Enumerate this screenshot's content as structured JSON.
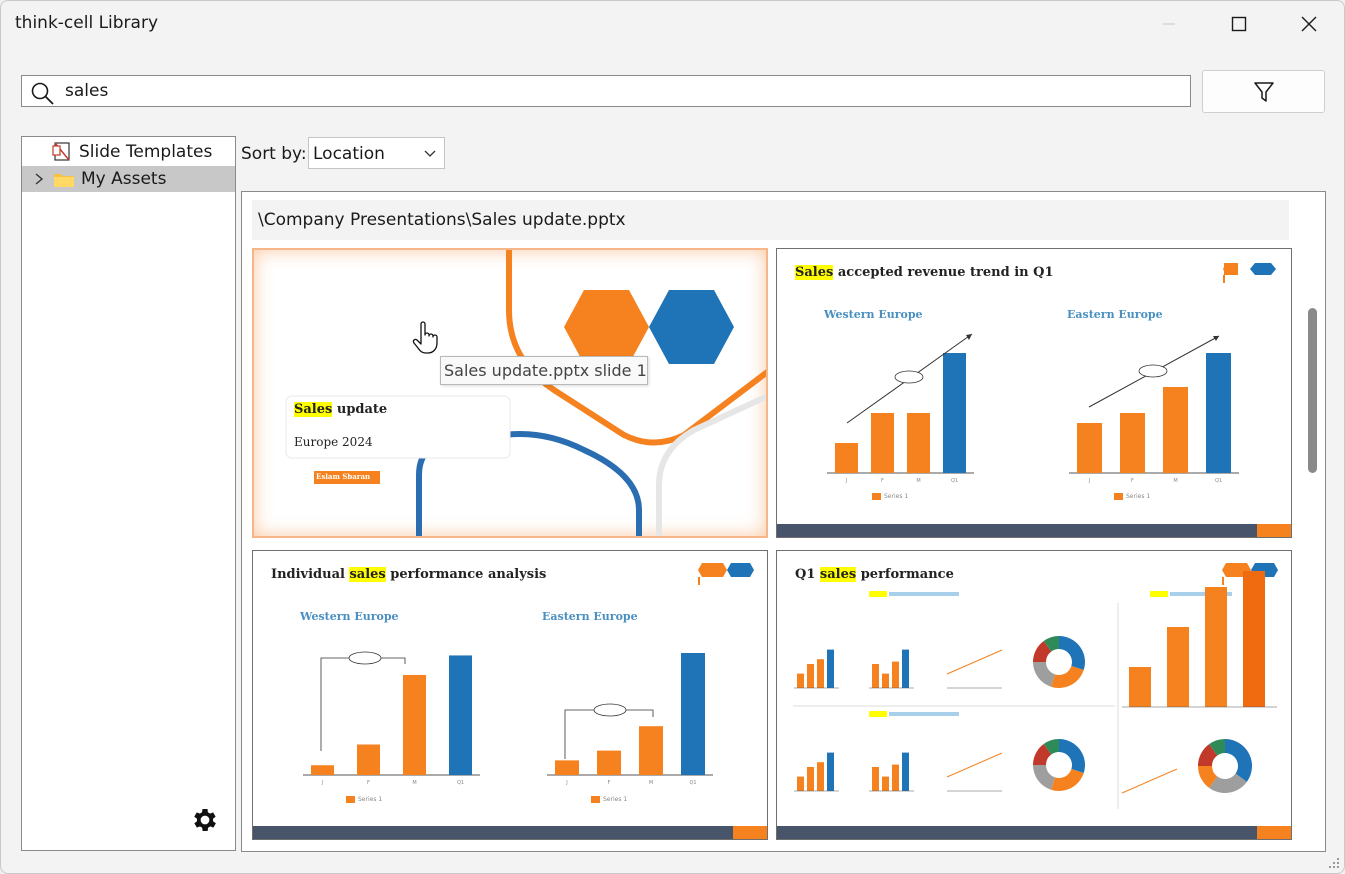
{
  "window": {
    "title": "think-cell Library"
  },
  "search": {
    "value": "sales",
    "placeholder": ""
  },
  "tree": {
    "items": [
      {
        "label": "Slide Templates"
      },
      {
        "label": "My Assets"
      }
    ]
  },
  "sort": {
    "label": "Sort by:",
    "value": "Location"
  },
  "results": {
    "group_path": "\\Company Presentations\\Sales update.pptx"
  },
  "tooltip": "Sales update.pptx slide 1",
  "slides": [
    {
      "title_hl": "Sales",
      "title_rest": " update",
      "subtitle": "Europe 2024",
      "presenter": "Eslam Sbaran"
    },
    {
      "title_hl": "Sales",
      "title_rest": " accepted revenue trend in Q1",
      "regions": [
        "Western Europe",
        "Eastern Europe"
      ],
      "legend": "Series 1",
      "chart_data": [
        {
          "type": "bar",
          "title": "Western Europe",
          "categories": [
            "J",
            "F",
            "M",
            "Q1"
          ],
          "series": [
            {
              "name": "Series 1",
              "values": [
                15,
                30,
                30,
                60
              ]
            }
          ]
        },
        {
          "type": "bar",
          "title": "Eastern Europe",
          "categories": [
            "J",
            "F",
            "M",
            "Q1"
          ],
          "series": [
            {
              "name": "Series 1",
              "values": [
                25,
                30,
                43,
                60
              ]
            }
          ]
        }
      ]
    },
    {
      "title_pre": "Individual ",
      "title_hl": "sales",
      "title_rest": " performance analysis",
      "regions": [
        "Western Europe",
        "Eastern Europe"
      ],
      "legend": "Series 1",
      "chart_data": [
        {
          "type": "bar",
          "title": "Western Europe",
          "categories": [
            "J",
            "F",
            "M",
            "Q1"
          ],
          "series": [
            {
              "name": "Series 1",
              "values": [
                8,
                25,
                82,
                98
              ]
            }
          ]
        },
        {
          "type": "bar",
          "title": "Eastern Europe",
          "categories": [
            "J",
            "F",
            "M",
            "Q1"
          ],
          "series": [
            {
              "name": "Series 1",
              "values": [
                12,
                20,
                40,
                100
              ]
            }
          ]
        }
      ]
    },
    {
      "title_pre": "Q1 ",
      "title_hl": "sales",
      "title_rest": " performance"
    }
  ],
  "colors": {
    "orange": "#f5821f",
    "blue": "#1f73b7",
    "navy": "#475469",
    "highlight": "#ffff00",
    "selection": "#c8c8c8"
  }
}
